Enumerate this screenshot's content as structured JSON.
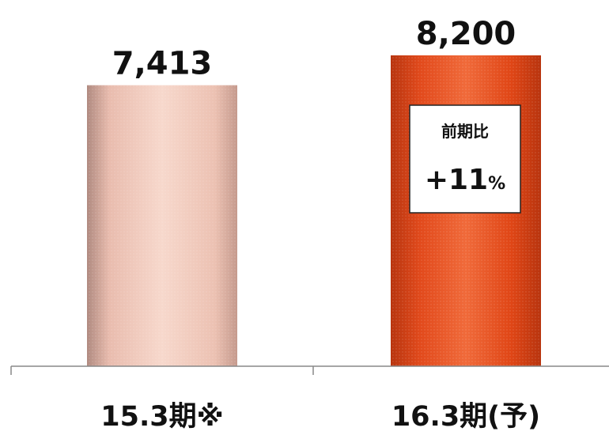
{
  "chart_data": {
    "type": "bar",
    "categories": [
      "15.3期※",
      "16.3期(予)"
    ],
    "values": [
      7413,
      8200
    ],
    "value_labels": [
      "7,413",
      "8,200"
    ],
    "ylim": [
      0,
      8200
    ],
    "grid": false,
    "bar_colors": [
      "#f2c7b8",
      "#e8491d"
    ],
    "annotation": {
      "title": "前期比",
      "value": "+11",
      "unit": "%"
    }
  }
}
